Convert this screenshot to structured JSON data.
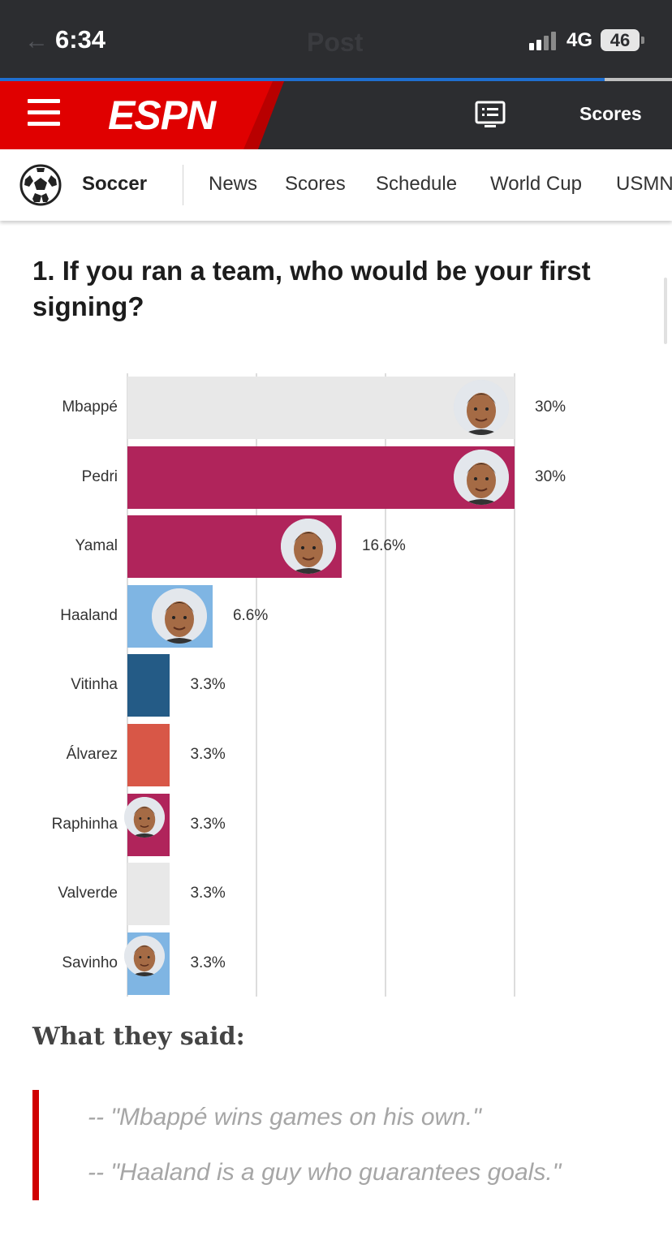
{
  "status_bar": {
    "time": "6:34",
    "network": "4G",
    "battery": "46",
    "ghost_title": "Post",
    "page_progress_pct": 90
  },
  "header": {
    "brand": "ESPN",
    "scores_label": "Scores",
    "menu_icon": "hamburger-icon",
    "tv_icon": "watch-tv-icon",
    "brand_color": "#e00000"
  },
  "subnav": {
    "sport_icon": "soccer-ball-icon",
    "sport_label": "Soccer",
    "items": [
      "News",
      "Scores",
      "Schedule",
      "World Cup",
      "USMNT"
    ]
  },
  "article": {
    "question": "1. If you ran a team, who would be your first signing?",
    "said_title": "What they said:",
    "quotes": [
      "-- \"Mbappé wins games on his own.\"",
      "-- \"Haaland is a guy who guarantees goals.\""
    ]
  },
  "chart_data": {
    "type": "bar",
    "orientation": "horizontal",
    "categories": [
      "Mbappé",
      "Pedri",
      "Yamal",
      "Haaland",
      "Vitinha",
      "Álvarez",
      "Raphinha",
      "Valverde",
      "Savinho"
    ],
    "values": [
      30,
      30,
      16.6,
      6.6,
      3.3,
      3.3,
      3.3,
      3.3,
      3.3
    ],
    "value_labels": [
      "30%",
      "30%",
      "16.6%",
      "6.6%",
      "3.3%",
      "3.3%",
      "3.3%",
      "3.3%",
      "3.3%"
    ],
    "colors": [
      "#e8e8e8",
      "#b0245b",
      "#b0245b",
      "#7fb5e3",
      "#245b86",
      "#d85747",
      "#b0245b",
      "#e8e8e8",
      "#7fb5e3"
    ],
    "has_player_photo": [
      true,
      true,
      true,
      true,
      false,
      false,
      true,
      false,
      true
    ],
    "xlim": [
      0,
      30
    ],
    "gridlines": [
      0,
      10,
      20,
      30
    ],
    "grid": true
  }
}
